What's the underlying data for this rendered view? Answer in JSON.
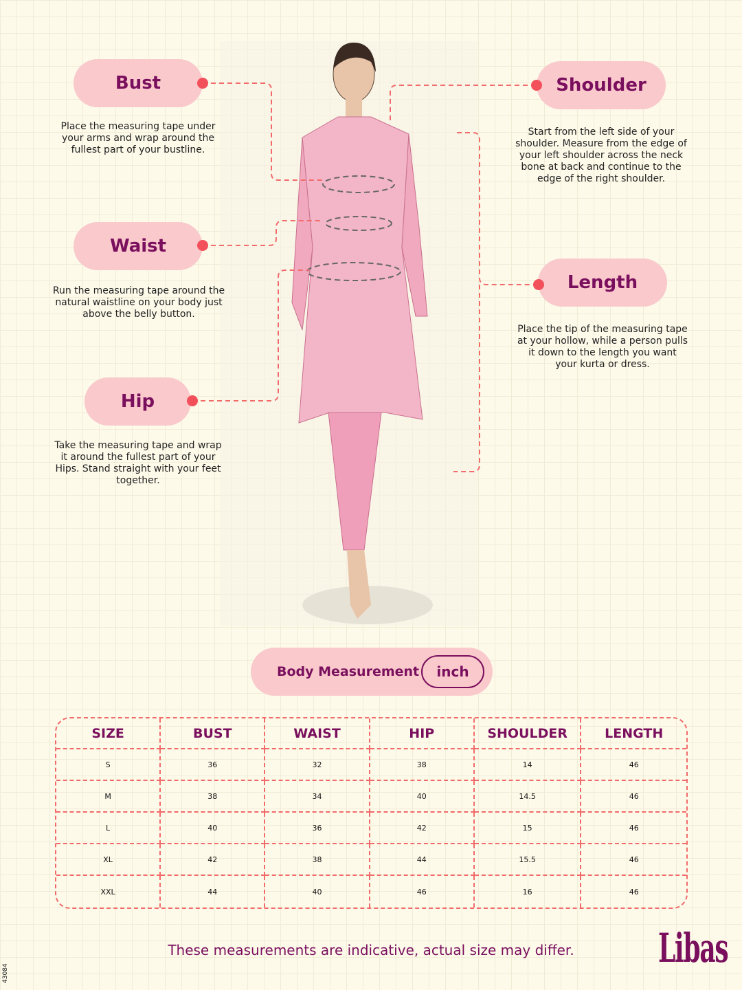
{
  "labels": {
    "bust": {
      "title": "Bust",
      "desc": "Place the measuring tape under your arms and wrap around the fullest part of your bustline."
    },
    "waist": {
      "title": "Waist",
      "desc": "Run the measuring tape around the natural waistline on your body just above the belly button."
    },
    "hip": {
      "title": "Hip",
      "desc": "Take the measuring tape and wrap it around the fullest part of your Hips. Stand straight with your feet together."
    },
    "shoulder": {
      "title": "Shoulder",
      "desc": "Start from the left side of your shoulder. Measure from the edge of your left shoulder across the neck bone at back and continue to the edge of the right shoulder."
    },
    "length": {
      "title": "Length",
      "desc": "Place the tip of the measuring tape at your hollow, while a person pulls it down to the length you want your kurta or dress."
    }
  },
  "toggle": {
    "label": "Body Measurement",
    "unit": "inch"
  },
  "table": {
    "headers": [
      "SIZE",
      "BUST",
      "WAIST",
      "HIP",
      "SHOULDER",
      "LENGTH"
    ],
    "rows": [
      [
        "S",
        "36",
        "32",
        "38",
        "14",
        "46"
      ],
      [
        "M",
        "38",
        "34",
        "40",
        "14.5",
        "46"
      ],
      [
        "L",
        "40",
        "36",
        "42",
        "15",
        "46"
      ],
      [
        "XL",
        "42",
        "38",
        "44",
        "15.5",
        "46"
      ],
      [
        "XXL",
        "44",
        "40",
        "46",
        "16",
        "46"
      ]
    ]
  },
  "footer": {
    "note": "These measurements are indicative, actual size may differ.",
    "brand": "Libas",
    "code": "43084"
  },
  "colors": {
    "accent": "#7a0f5e",
    "pill": "#f9c9cc",
    "dashed": "#f26b6b",
    "dot": "#f2505a"
  }
}
